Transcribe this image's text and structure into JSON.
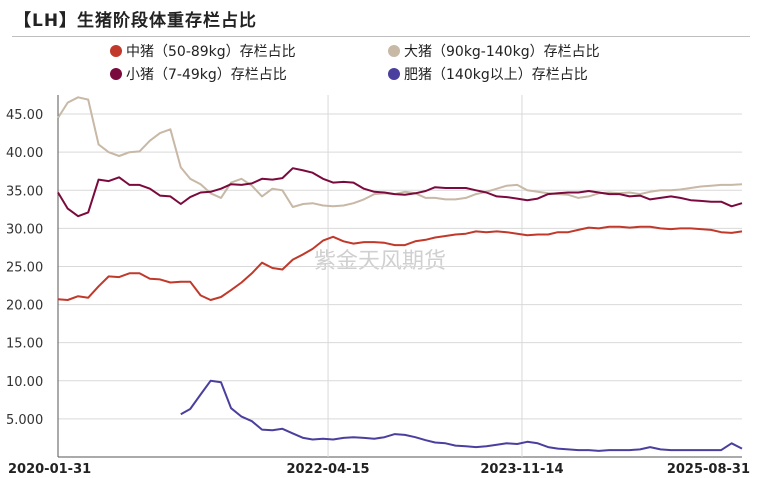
{
  "title": "【LH】生猪阶段体重存栏占比",
  "watermark": "紫金天风期货",
  "colors": {
    "medium": "#c0392b",
    "large": "#c8b8a6",
    "small": "#7a0a3e",
    "fat": "#4a3f9e",
    "grid": "#d9d9d9",
    "axis": "#555555",
    "watermark": "#d0d0d0"
  },
  "chart_data": {
    "type": "line",
    "title": "【LH】生猪阶段体重存栏占比",
    "ylim": [
      0,
      47.5
    ],
    "yticks": [
      "5.000",
      "10.00",
      "15.00",
      "20.00",
      "25.00",
      "30.00",
      "35.00",
      "40.00",
      "45.00"
    ],
    "xlim": [
      "2020-01-31",
      "2025-08-31"
    ],
    "xticks": [
      "2020-01-31",
      "2022-04-15",
      "2023-11-14",
      "2025-08-31"
    ],
    "grid": "horizontal",
    "legend_position": "top",
    "series": [
      {
        "name": "中猪（50-89kg）存栏占比",
        "key": "medium",
        "points": [
          [
            "2020-01-31",
            20.7
          ],
          [
            "2020-02-29",
            20.6
          ],
          [
            "2020-03-31",
            21.1
          ],
          [
            "2020-04-30",
            20.9
          ],
          [
            "2020-05-31",
            22.4
          ],
          [
            "2020-06-30",
            23.7
          ],
          [
            "2020-07-31",
            23.6
          ],
          [
            "2020-08-31",
            24.1
          ],
          [
            "2020-09-30",
            24.1
          ],
          [
            "2020-10-31",
            23.4
          ],
          [
            "2020-11-30",
            23.3
          ],
          [
            "2020-12-31",
            22.9
          ],
          [
            "2021-01-31",
            23.0
          ],
          [
            "2021-02-28",
            23.0
          ],
          [
            "2021-03-31",
            21.2
          ],
          [
            "2021-04-30",
            20.6
          ],
          [
            "2021-05-31",
            21.0
          ],
          [
            "2021-06-30",
            21.9
          ],
          [
            "2021-07-31",
            22.9
          ],
          [
            "2021-08-31",
            24.1
          ],
          [
            "2021-09-30",
            25.5
          ],
          [
            "2021-10-31",
            24.8
          ],
          [
            "2021-11-30",
            24.6
          ],
          [
            "2021-12-31",
            25.9
          ],
          [
            "2022-01-31",
            26.6
          ],
          [
            "2022-02-28",
            27.3
          ],
          [
            "2022-03-31",
            28.4
          ],
          [
            "2022-04-30",
            28.9
          ],
          [
            "2022-05-31",
            28.3
          ],
          [
            "2022-06-30",
            28.0
          ],
          [
            "2022-07-31",
            28.2
          ],
          [
            "2022-08-31",
            28.2
          ],
          [
            "2022-09-30",
            28.1
          ],
          [
            "2022-10-31",
            27.8
          ],
          [
            "2022-11-30",
            27.8
          ],
          [
            "2022-12-31",
            28.3
          ],
          [
            "2023-01-31",
            28.5
          ],
          [
            "2023-02-28",
            28.8
          ],
          [
            "2023-03-31",
            29.0
          ],
          [
            "2023-04-30",
            29.2
          ],
          [
            "2023-05-31",
            29.3
          ],
          [
            "2023-06-30",
            29.6
          ],
          [
            "2023-07-31",
            29.5
          ],
          [
            "2023-08-31",
            29.6
          ],
          [
            "2023-09-30",
            29.5
          ],
          [
            "2023-10-31",
            29.3
          ],
          [
            "2023-11-30",
            29.1
          ],
          [
            "2023-12-31",
            29.2
          ],
          [
            "2024-01-31",
            29.2
          ],
          [
            "2024-02-29",
            29.5
          ],
          [
            "2024-03-31",
            29.5
          ],
          [
            "2024-04-30",
            29.8
          ],
          [
            "2024-05-31",
            30.1
          ],
          [
            "2024-06-30",
            30.0
          ],
          [
            "2024-07-31",
            30.2
          ],
          [
            "2024-08-31",
            30.2
          ],
          [
            "2024-09-30",
            30.1
          ],
          [
            "2024-10-31",
            30.2
          ],
          [
            "2024-11-30",
            30.2
          ],
          [
            "2024-12-31",
            30.0
          ],
          [
            "2025-01-31",
            29.9
          ],
          [
            "2025-02-28",
            30.0
          ],
          [
            "2025-03-31",
            30.0
          ],
          [
            "2025-04-30",
            29.9
          ],
          [
            "2025-05-31",
            29.8
          ],
          [
            "2025-06-30",
            29.5
          ],
          [
            "2025-07-31",
            29.4
          ],
          [
            "2025-08-31",
            29.6
          ]
        ]
      },
      {
        "name": "大猪（90kg-140kg）存栏占比",
        "key": "large",
        "points": [
          [
            "2020-01-31",
            44.5
          ],
          [
            "2020-02-29",
            46.5
          ],
          [
            "2020-03-31",
            47.2
          ],
          [
            "2020-04-30",
            46.9
          ],
          [
            "2020-05-31",
            41.0
          ],
          [
            "2020-06-30",
            40.0
          ],
          [
            "2020-07-31",
            39.5
          ],
          [
            "2020-08-31",
            40.0
          ],
          [
            "2020-09-30",
            40.1
          ],
          [
            "2020-10-31",
            41.5
          ],
          [
            "2020-11-30",
            42.5
          ],
          [
            "2020-12-31",
            43.0
          ],
          [
            "2021-01-31",
            38.0
          ],
          [
            "2021-02-28",
            36.5
          ],
          [
            "2021-03-31",
            35.8
          ],
          [
            "2021-04-30",
            34.6
          ],
          [
            "2021-05-31",
            34.0
          ],
          [
            "2021-06-30",
            36.0
          ],
          [
            "2021-07-31",
            36.5
          ],
          [
            "2021-08-31",
            35.6
          ],
          [
            "2021-09-30",
            34.2
          ],
          [
            "2021-10-31",
            35.2
          ],
          [
            "2021-11-30",
            35.0
          ],
          [
            "2021-12-31",
            32.8
          ],
          [
            "2022-01-31",
            33.2
          ],
          [
            "2022-02-28",
            33.3
          ],
          [
            "2022-03-31",
            33.0
          ],
          [
            "2022-04-30",
            32.9
          ],
          [
            "2022-05-31",
            33.0
          ],
          [
            "2022-06-30",
            33.3
          ],
          [
            "2022-07-31",
            33.8
          ],
          [
            "2022-08-31",
            34.5
          ],
          [
            "2022-09-30",
            34.6
          ],
          [
            "2022-10-31",
            34.5
          ],
          [
            "2022-11-30",
            34.8
          ],
          [
            "2022-12-31",
            34.6
          ],
          [
            "2023-01-31",
            34.0
          ],
          [
            "2023-02-28",
            34.0
          ],
          [
            "2023-03-31",
            33.8
          ],
          [
            "2023-04-30",
            33.8
          ],
          [
            "2023-05-31",
            34.0
          ],
          [
            "2023-06-30",
            34.5
          ],
          [
            "2023-07-31",
            34.8
          ],
          [
            "2023-08-31",
            35.2
          ],
          [
            "2023-09-30",
            35.6
          ],
          [
            "2023-10-31",
            35.7
          ],
          [
            "2023-11-30",
            35.0
          ],
          [
            "2023-12-31",
            34.8
          ],
          [
            "2024-01-31",
            34.6
          ],
          [
            "2024-02-29",
            34.5
          ],
          [
            "2024-03-31",
            34.4
          ],
          [
            "2024-04-30",
            34.0
          ],
          [
            "2024-05-31",
            34.2
          ],
          [
            "2024-06-30",
            34.6
          ],
          [
            "2024-07-31",
            34.7
          ],
          [
            "2024-08-31",
            34.6
          ],
          [
            "2024-09-30",
            34.7
          ],
          [
            "2024-10-31",
            34.5
          ],
          [
            "2024-11-30",
            34.8
          ],
          [
            "2024-12-31",
            35.0
          ],
          [
            "2025-01-31",
            35.0
          ],
          [
            "2025-02-28",
            35.1
          ],
          [
            "2025-03-31",
            35.3
          ],
          [
            "2025-04-30",
            35.5
          ],
          [
            "2025-05-31",
            35.6
          ],
          [
            "2025-06-30",
            35.7
          ],
          [
            "2025-07-31",
            35.7
          ],
          [
            "2025-08-31",
            35.8
          ]
        ]
      },
      {
        "name": "小猪（7-49kg）存栏占比",
        "key": "small",
        "points": [
          [
            "2020-01-31",
            34.7
          ],
          [
            "2020-02-29",
            32.6
          ],
          [
            "2020-03-31",
            31.6
          ],
          [
            "2020-04-30",
            32.1
          ],
          [
            "2020-05-31",
            36.4
          ],
          [
            "2020-06-30",
            36.2
          ],
          [
            "2020-07-31",
            36.7
          ],
          [
            "2020-08-31",
            35.7
          ],
          [
            "2020-09-30",
            35.7
          ],
          [
            "2020-10-31",
            35.2
          ],
          [
            "2020-11-30",
            34.3
          ],
          [
            "2020-12-31",
            34.2
          ],
          [
            "2021-01-31",
            33.2
          ],
          [
            "2021-02-28",
            34.1
          ],
          [
            "2021-03-31",
            34.7
          ],
          [
            "2021-04-30",
            34.8
          ],
          [
            "2021-05-31",
            35.2
          ],
          [
            "2021-06-30",
            35.8
          ],
          [
            "2021-07-31",
            35.7
          ],
          [
            "2021-08-31",
            35.9
          ],
          [
            "2021-09-30",
            36.5
          ],
          [
            "2021-10-31",
            36.4
          ],
          [
            "2021-11-30",
            36.6
          ],
          [
            "2021-12-31",
            37.9
          ],
          [
            "2022-01-31",
            37.6
          ],
          [
            "2022-02-28",
            37.3
          ],
          [
            "2022-03-31",
            36.5
          ],
          [
            "2022-04-30",
            36.0
          ],
          [
            "2022-05-31",
            36.1
          ],
          [
            "2022-06-30",
            36.0
          ],
          [
            "2022-07-31",
            35.2
          ],
          [
            "2022-08-31",
            34.8
          ],
          [
            "2022-09-30",
            34.7
          ],
          [
            "2022-10-31",
            34.5
          ],
          [
            "2022-11-30",
            34.4
          ],
          [
            "2022-12-31",
            34.6
          ],
          [
            "2023-01-31",
            34.9
          ],
          [
            "2023-02-28",
            35.4
          ],
          [
            "2023-03-31",
            35.3
          ],
          [
            "2023-04-30",
            35.3
          ],
          [
            "2023-05-31",
            35.3
          ],
          [
            "2023-06-30",
            35.0
          ],
          [
            "2023-07-31",
            34.7
          ],
          [
            "2023-08-31",
            34.2
          ],
          [
            "2023-09-30",
            34.1
          ],
          [
            "2023-10-31",
            33.9
          ],
          [
            "2023-11-30",
            33.7
          ],
          [
            "2023-12-31",
            33.9
          ],
          [
            "2024-01-31",
            34.5
          ],
          [
            "2024-02-29",
            34.6
          ],
          [
            "2024-03-31",
            34.7
          ],
          [
            "2024-04-30",
            34.7
          ],
          [
            "2024-05-31",
            34.9
          ],
          [
            "2024-06-30",
            34.7
          ],
          [
            "2024-07-31",
            34.5
          ],
          [
            "2024-08-31",
            34.5
          ],
          [
            "2024-09-30",
            34.2
          ],
          [
            "2024-10-31",
            34.3
          ],
          [
            "2024-11-30",
            33.8
          ],
          [
            "2024-12-31",
            34.0
          ],
          [
            "2025-01-31",
            34.2
          ],
          [
            "2025-02-28",
            34.0
          ],
          [
            "2025-03-31",
            33.7
          ],
          [
            "2025-04-30",
            33.6
          ],
          [
            "2025-05-31",
            33.5
          ],
          [
            "2025-06-30",
            33.5
          ],
          [
            "2025-07-31",
            32.9
          ],
          [
            "2025-08-31",
            33.3
          ]
        ]
      },
      {
        "name": "肥猪（140kg以上）存栏占比",
        "key": "fat",
        "points": [
          [
            "2021-01-31",
            5.6
          ],
          [
            "2021-02-28",
            6.3
          ],
          [
            "2021-03-31",
            8.2
          ],
          [
            "2021-04-30",
            10.0
          ],
          [
            "2021-05-31",
            9.8
          ],
          [
            "2021-06-30",
            6.4
          ],
          [
            "2021-07-31",
            5.3
          ],
          [
            "2021-08-31",
            4.7
          ],
          [
            "2021-09-30",
            3.6
          ],
          [
            "2021-10-31",
            3.5
          ],
          [
            "2021-11-30",
            3.7
          ],
          [
            "2021-12-31",
            3.1
          ],
          [
            "2022-01-31",
            2.5
          ],
          [
            "2022-02-28",
            2.3
          ],
          [
            "2022-03-31",
            2.4
          ],
          [
            "2022-04-30",
            2.3
          ],
          [
            "2022-05-31",
            2.5
          ],
          [
            "2022-06-30",
            2.6
          ],
          [
            "2022-07-31",
            2.5
          ],
          [
            "2022-08-31",
            2.4
          ],
          [
            "2022-09-30",
            2.6
          ],
          [
            "2022-10-31",
            3.0
          ],
          [
            "2022-11-30",
            2.9
          ],
          [
            "2022-12-31",
            2.6
          ],
          [
            "2023-01-31",
            2.2
          ],
          [
            "2023-02-28",
            1.9
          ],
          [
            "2023-03-31",
            1.8
          ],
          [
            "2023-04-30",
            1.5
          ],
          [
            "2023-05-31",
            1.4
          ],
          [
            "2023-06-30",
            1.3
          ],
          [
            "2023-07-31",
            1.4
          ],
          [
            "2023-08-31",
            1.6
          ],
          [
            "2023-09-30",
            1.8
          ],
          [
            "2023-10-31",
            1.7
          ],
          [
            "2023-11-30",
            2.0
          ],
          [
            "2023-12-31",
            1.8
          ],
          [
            "2024-01-31",
            1.3
          ],
          [
            "2024-02-29",
            1.1
          ],
          [
            "2024-03-31",
            1.0
          ],
          [
            "2024-04-30",
            0.9
          ],
          [
            "2024-05-31",
            0.9
          ],
          [
            "2024-06-30",
            0.8
          ],
          [
            "2024-07-31",
            0.9
          ],
          [
            "2024-08-31",
            0.9
          ],
          [
            "2024-09-30",
            0.9
          ],
          [
            "2024-10-31",
            1.0
          ],
          [
            "2024-11-30",
            1.3
          ],
          [
            "2024-12-31",
            1.0
          ],
          [
            "2025-01-31",
            0.9
          ],
          [
            "2025-02-28",
            0.9
          ],
          [
            "2025-03-31",
            0.9
          ],
          [
            "2025-04-30",
            0.9
          ],
          [
            "2025-05-31",
            0.9
          ],
          [
            "2025-06-30",
            0.9
          ],
          [
            "2025-07-31",
            1.8
          ],
          [
            "2025-08-31",
            1.1
          ]
        ]
      }
    ]
  }
}
